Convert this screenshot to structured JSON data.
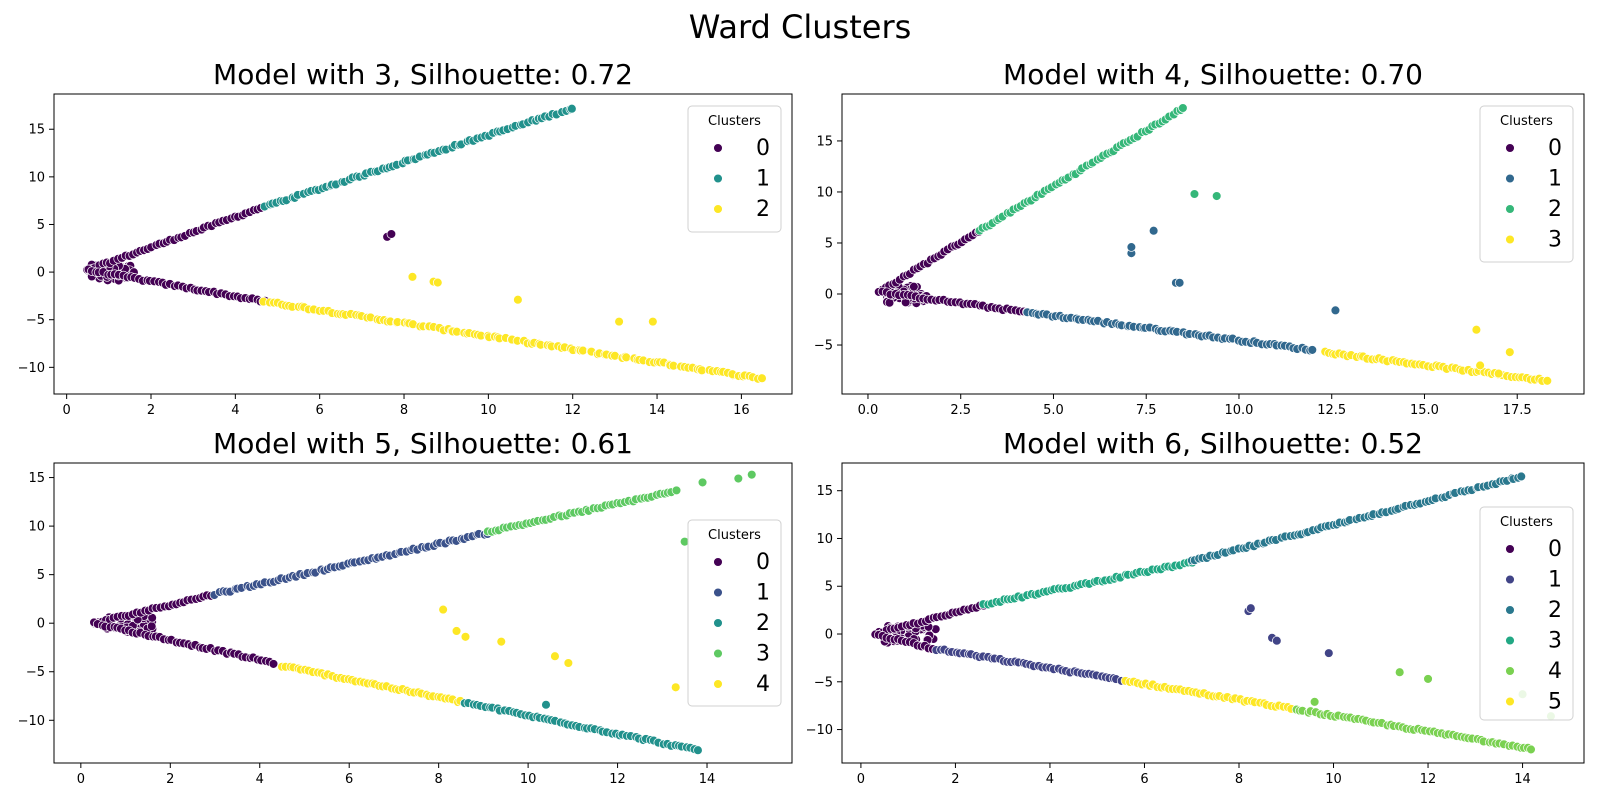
{
  "suptitle": "Ward Clusters",
  "legend_title": "Clusters",
  "palette": {
    "3": [
      "#440154",
      "#21918c",
      "#fde725"
    ],
    "4": [
      "#440154",
      "#31688e",
      "#35b779",
      "#fde725"
    ],
    "5": [
      "#440154",
      "#3b528b",
      "#21918c",
      "#5ec962",
      "#fde725"
    ],
    "6": [
      "#440154",
      "#414487",
      "#2a788e",
      "#22a884",
      "#7ad151",
      "#fde725"
    ]
  },
  "chart_data": [
    {
      "type": "scatter",
      "title": "Model with 3, Silhouette: 0.72",
      "xlim": [
        -0.3,
        17.2
      ],
      "ylim": [
        -12.8,
        18.7
      ],
      "xticks": [
        "0",
        "2",
        "4",
        "6",
        "8",
        "10",
        "12",
        "14",
        "16"
      ],
      "xtick_values": [
        0,
        2,
        4,
        6,
        8,
        10,
        12,
        14,
        16
      ],
      "yticks": [
        "−10",
        "−5",
        "0",
        "5",
        "10",
        "15"
      ],
      "ytick_values": [
        -10,
        -5,
        0,
        5,
        10,
        15
      ],
      "legend_placement": "upper-right",
      "legend_labels": [
        "0",
        "1",
        "2"
      ],
      "segments": [
        {
          "cluster": 0,
          "from": [
            0.5,
            0.2
          ],
          "to": [
            4.7,
            6.9
          ]
        },
        {
          "cluster": 0,
          "from": [
            0.5,
            0.2
          ],
          "to": [
            4.7,
            -3.1
          ]
        },
        {
          "cluster": 1,
          "from": [
            4.7,
            6.9
          ],
          "to": [
            12.0,
            17.2
          ]
        },
        {
          "cluster": 2,
          "from": [
            4.7,
            -3.1
          ],
          "to": [
            16.5,
            -11.2
          ]
        }
      ],
      "outliers": [
        {
          "cluster": 0,
          "x": 7.6,
          "y": 3.7
        },
        {
          "cluster": 0,
          "x": 7.7,
          "y": 4.0
        },
        {
          "cluster": 2,
          "x": 8.2,
          "y": -0.5
        },
        {
          "cluster": 2,
          "x": 8.7,
          "y": -1.0
        },
        {
          "cluster": 2,
          "x": 8.8,
          "y": -1.1
        },
        {
          "cluster": 2,
          "x": 10.7,
          "y": -2.9
        },
        {
          "cluster": 2,
          "x": 13.1,
          "y": -5.2
        },
        {
          "cluster": 2,
          "x": 13.9,
          "y": -5.2
        }
      ]
    },
    {
      "type": "scatter",
      "title": "Model with 4, Silhouette: 0.70",
      "xlim": [
        -0.7,
        19.3
      ],
      "ylim": [
        -9.8,
        19.6
      ],
      "xticks": [
        "0.0",
        "2.5",
        "5.0",
        "7.5",
        "10.0",
        "12.5",
        "15.0",
        "17.5"
      ],
      "xtick_values": [
        0,
        2.5,
        5,
        7.5,
        10,
        12.5,
        15,
        17.5
      ],
      "yticks": [
        "−5",
        "0",
        "5",
        "10",
        "15"
      ],
      "ytick_values": [
        -5,
        0,
        5,
        10,
        15
      ],
      "legend_placement": "upper-right",
      "legend_labels": [
        "0",
        "1",
        "2",
        "3"
      ],
      "segments": [
        {
          "cluster": 0,
          "from": [
            0.3,
            0.2
          ],
          "to": [
            3.0,
            6.2
          ]
        },
        {
          "cluster": 0,
          "from": [
            0.3,
            0.2
          ],
          "to": [
            4.3,
            -1.8
          ]
        },
        {
          "cluster": 2,
          "from": [
            3.0,
            6.2
          ],
          "to": [
            8.5,
            18.2
          ]
        },
        {
          "cluster": 1,
          "from": [
            4.3,
            -1.8
          ],
          "to": [
            12.0,
            -5.5
          ]
        },
        {
          "cluster": 3,
          "from": [
            12.3,
            -5.7
          ],
          "to": [
            18.3,
            -8.5
          ]
        }
      ],
      "outliers": [
        {
          "cluster": 1,
          "x": 7.1,
          "y": 4.0
        },
        {
          "cluster": 1,
          "x": 7.1,
          "y": 4.6
        },
        {
          "cluster": 1,
          "x": 7.7,
          "y": 6.2
        },
        {
          "cluster": 1,
          "x": 8.3,
          "y": 1.1
        },
        {
          "cluster": 1,
          "x": 8.4,
          "y": 1.1
        },
        {
          "cluster": 1,
          "x": 12.6,
          "y": -1.6
        },
        {
          "cluster": 2,
          "x": 8.8,
          "y": 9.8
        },
        {
          "cluster": 2,
          "x": 9.4,
          "y": 9.6
        },
        {
          "cluster": 3,
          "x": 16.4,
          "y": -3.5
        },
        {
          "cluster": 3,
          "x": 16.5,
          "y": -7.0
        },
        {
          "cluster": 3,
          "x": 17.0,
          "y": -7.8
        },
        {
          "cluster": 3,
          "x": 17.3,
          "y": -5.7
        }
      ]
    },
    {
      "type": "scatter",
      "title": "Model with 5, Silhouette: 0.61",
      "xlim": [
        -0.6,
        15.9
      ],
      "ylim": [
        -14.4,
        16.5
      ],
      "xticks": [
        "0",
        "2",
        "4",
        "6",
        "8",
        "10",
        "12",
        "14"
      ],
      "xtick_values": [
        0,
        2,
        4,
        6,
        8,
        10,
        12,
        14
      ],
      "yticks": [
        "−10",
        "−5",
        "0",
        "5",
        "10",
        "15"
      ],
      "ytick_values": [
        -10,
        -5,
        0,
        5,
        10,
        15
      ],
      "legend_placement": "center-right",
      "legend_labels": [
        "0",
        "1",
        "2",
        "3",
        "4"
      ],
      "segments": [
        {
          "cluster": 0,
          "from": [
            0.3,
            0.0
          ],
          "to": [
            3.0,
            3.0
          ]
        },
        {
          "cluster": 0,
          "from": [
            0.3,
            0.0
          ],
          "to": [
            4.3,
            -4.1
          ]
        },
        {
          "cluster": 1,
          "from": [
            3.0,
            3.0
          ],
          "to": [
            9.1,
            9.3
          ]
        },
        {
          "cluster": 3,
          "from": [
            9.1,
            9.4
          ],
          "to": [
            13.3,
            13.6
          ]
        },
        {
          "cluster": 4,
          "from": [
            4.5,
            -4.4
          ],
          "to": [
            8.5,
            -8.1
          ]
        },
        {
          "cluster": 2,
          "from": [
            8.6,
            -8.2
          ],
          "to": [
            13.8,
            -13.1
          ]
        }
      ],
      "outliers": [
        {
          "cluster": 3,
          "x": 13.9,
          "y": 14.5
        },
        {
          "cluster": 3,
          "x": 14.7,
          "y": 14.9
        },
        {
          "cluster": 3,
          "x": 15.0,
          "y": 15.3
        },
        {
          "cluster": 3,
          "x": 13.5,
          "y": 8.4
        },
        {
          "cluster": 4,
          "x": 8.1,
          "y": 1.4
        },
        {
          "cluster": 4,
          "x": 8.4,
          "y": -0.8
        },
        {
          "cluster": 4,
          "x": 8.6,
          "y": -1.4
        },
        {
          "cluster": 4,
          "x": 9.4,
          "y": -1.9
        },
        {
          "cluster": 4,
          "x": 10.6,
          "y": -3.4
        },
        {
          "cluster": 4,
          "x": 10.9,
          "y": -4.1
        },
        {
          "cluster": 4,
          "x": 13.3,
          "y": -6.6
        },
        {
          "cluster": 2,
          "x": 10.4,
          "y": -8.4
        }
      ]
    },
    {
      "type": "scatter",
      "title": "Model with 6, Silhouette: 0.52",
      "xlim": [
        -0.4,
        15.3
      ],
      "ylim": [
        -13.5,
        17.9
      ],
      "xticks": [
        "0",
        "2",
        "4",
        "6",
        "8",
        "10",
        "12",
        "14"
      ],
      "xtick_values": [
        0,
        2,
        4,
        6,
        8,
        10,
        12,
        14
      ],
      "yticks": [
        "−10",
        "−5",
        "0",
        "5",
        "10",
        "15"
      ],
      "ytick_values": [
        -10,
        -5,
        0,
        5,
        10,
        15
      ],
      "legend_placement": "center-right",
      "legend_labels": [
        "0",
        "1",
        "2",
        "3",
        "4",
        "5"
      ],
      "segments": [
        {
          "cluster": 0,
          "from": [
            0.3,
            0.0
          ],
          "to": [
            2.6,
            3.0
          ]
        },
        {
          "cluster": 0,
          "from": [
            0.3,
            0.0
          ],
          "to": [
            1.6,
            -1.6
          ]
        },
        {
          "cluster": 3,
          "from": [
            2.6,
            3.1
          ],
          "to": [
            7.0,
            7.5
          ]
        },
        {
          "cluster": 2,
          "from": [
            7.0,
            7.6
          ],
          "to": [
            14.0,
            16.5
          ]
        },
        {
          "cluster": 1,
          "from": [
            1.6,
            -1.6
          ],
          "to": [
            5.5,
            -4.8
          ]
        },
        {
          "cluster": 5,
          "from": [
            5.6,
            -4.9
          ],
          "to": [
            9.1,
            -7.8
          ]
        },
        {
          "cluster": 4,
          "from": [
            9.2,
            -7.9
          ],
          "to": [
            14.2,
            -12.0
          ]
        }
      ],
      "outliers": [
        {
          "cluster": 1,
          "x": 8.2,
          "y": 2.4
        },
        {
          "cluster": 1,
          "x": 8.25,
          "y": 2.7
        },
        {
          "cluster": 1,
          "x": 8.7,
          "y": -0.4
        },
        {
          "cluster": 1,
          "x": 8.8,
          "y": -0.7
        },
        {
          "cluster": 1,
          "x": 9.9,
          "y": -2.0
        },
        {
          "cluster": 4,
          "x": 11.4,
          "y": -4.0
        },
        {
          "cluster": 4,
          "x": 12.0,
          "y": -4.7
        },
        {
          "cluster": 4,
          "x": 14.0,
          "y": -6.3
        },
        {
          "cluster": 4,
          "x": 14.6,
          "y": -8.6
        },
        {
          "cluster": 4,
          "x": 9.6,
          "y": -7.1
        }
      ]
    }
  ]
}
